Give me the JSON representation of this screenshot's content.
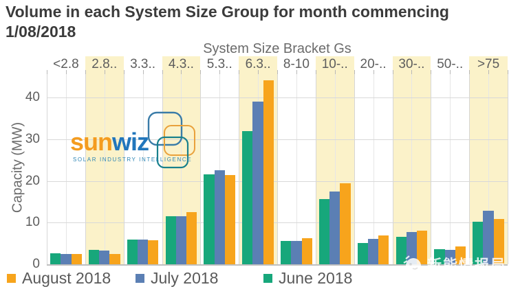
{
  "title": "Volume in each System Size Group for month commencing 1/08/2018",
  "chart_data": {
    "type": "bar",
    "title": "Volume in each System Size Group for month commencing 1/08/2018",
    "x_axis_title": "System Size Bracket Gs",
    "ylabel": "Capacity (MW)",
    "categories": [
      "<2.8",
      "2.8..",
      "3.3..",
      "4.3..",
      "5.3..",
      "6.3..",
      "8-10",
      "10-..",
      "20-..",
      "30-..",
      "50-..",
      ">75"
    ],
    "series": [
      {
        "name": "August 2018",
        "color": "#F7A41C",
        "values": [
          2.5,
          2.4,
          5.8,
          12.5,
          21.5,
          44.2,
          6.2,
          19.5,
          6.9,
          8.1,
          4.3,
          10.8
        ]
      },
      {
        "name": "July 2018",
        "color": "#5B7FB4",
        "values": [
          2.5,
          3.3,
          5.9,
          11.5,
          22.6,
          39.0,
          5.6,
          17.4,
          6.1,
          7.7,
          3.4,
          12.8
        ]
      },
      {
        "name": "June 2018",
        "color": "#17A77B",
        "values": [
          2.6,
          3.4,
          5.9,
          11.5,
          21.6,
          32.0,
          5.6,
          15.7,
          5.1,
          6.6,
          3.6,
          10.2
        ]
      }
    ],
    "ylim": [
      0,
      45
    ],
    "yticks": [
      0,
      10,
      20,
      30,
      40
    ],
    "grid": true,
    "legend_position": "bottom",
    "highlighted_category_indices": [
      1,
      3,
      5,
      7,
      9,
      11
    ],
    "highlight_color": "#FBF2C9",
    "bar_draw_order": "June, July, August left-to-right within each group"
  },
  "watermarks": {
    "sunwiz": {
      "sun": "sun",
      "wiz": "wiz",
      "tagline": "SOLAR INDUSTRY INTELLIGENCE",
      "square_colors": {
        "blue": "#3A7CA8",
        "orange": "#E9A13B",
        "teal": "#18808C"
      }
    },
    "publisher": {
      "text": "新能情报局",
      "icon": "wechat-account-logo",
      "color": "#FFFFFF"
    }
  }
}
